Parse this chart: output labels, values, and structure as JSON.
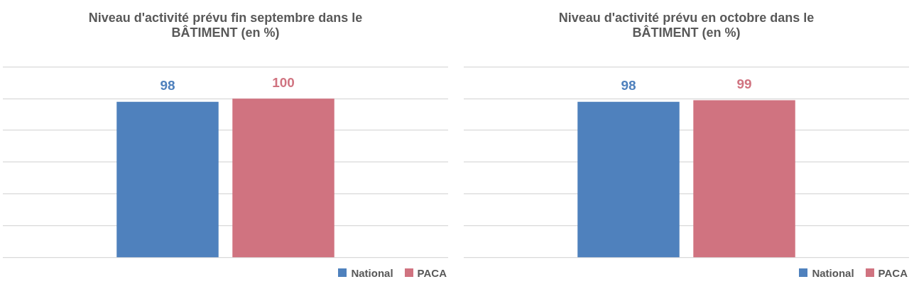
{
  "chart_data": [
    {
      "type": "bar",
      "title": "Niveau d'activité prévu fin septembre dans le BÂTIMENT (en %)",
      "categories": [
        null
      ],
      "series": [
        {
          "name": "National",
          "color": "#4f81bd",
          "values": [
            98
          ]
        },
        {
          "name": "PACA",
          "color": "#d07380",
          "values": [
            100
          ]
        }
      ],
      "tick_labels": false,
      "grid": "y",
      "legend": "bottom right",
      "data_labels": true
    },
    {
      "type": "bar",
      "title": "Niveau d'activité prévu en octobre dans le BÂTIMENT (en %)",
      "categories": [
        null
      ],
      "series": [
        {
          "name": "National",
          "color": "#4f81bd",
          "values": [
            98
          ]
        },
        {
          "name": "PACA",
          "color": "#d07380",
          "values": [
            99
          ]
        }
      ],
      "tick_labels": false,
      "grid": "y",
      "legend": "bottom right",
      "data_labels": true
    }
  ]
}
